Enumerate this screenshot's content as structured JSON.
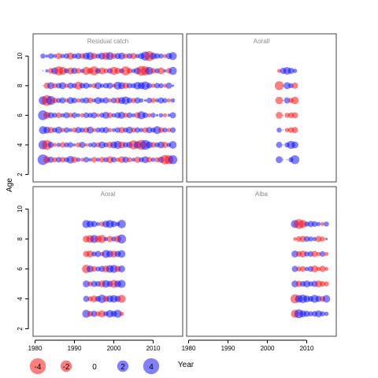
{
  "chart_data": {
    "type": "scatter",
    "subtype": "bubble-residuals",
    "xlabel": "Year",
    "ylabel": "Age",
    "xlim": [
      1979.5,
      2017.5
    ],
    "ylim": [
      1.5,
      11.5
    ],
    "x_ticks": [
      1980,
      1990,
      2000,
      2010
    ],
    "y_ticks": [
      2,
      4,
      6,
      8,
      10
    ],
    "colors": {
      "positive": "#0000ff",
      "negative": "#ff0000",
      "fill_opacity": 0.5
    },
    "legend": {
      "position": "bottom-left",
      "entries": [
        {
          "label": "-4",
          "value": -4
        },
        {
          "label": "-2",
          "value": -2
        },
        {
          "label": "0",
          "value": 0
        },
        {
          "label": "2",
          "value": 2
        },
        {
          "label": "4",
          "value": 4
        }
      ]
    },
    "panels": [
      {
        "title": "Residual catch",
        "x_range": [
          1982,
          2015
        ],
        "ages": [
          3,
          4,
          5,
          6,
          7,
          8,
          9,
          10
        ],
        "residuals": [
          [
            3.5,
            -1.5,
            1.2,
            -0.8,
            1.0,
            -1.0,
            0.8,
            1.8,
            -1.2,
            0.6,
            -0.5,
            1.0,
            0.4,
            -1.0,
            0.5,
            -1.0,
            0.8,
            -1.5,
            1.0,
            -0.6,
            -1.4,
            1.2,
            -0.8,
            0.5,
            -1.2,
            0.8,
            1.5,
            -1.0,
            0.6,
            -0.8,
            1.2,
            -2.8,
            -2.5,
            2.5
          ],
          [
            2.5,
            -3.0,
            1.2,
            -0.5,
            0.6,
            -1.0,
            0.8,
            1.0,
            0.3,
            -0.8,
            1.2,
            -0.4,
            0.6,
            1.0,
            -0.8,
            1.5,
            0.8,
            -1.2,
            1.5,
            2.0,
            -1.5,
            1.0,
            1.2,
            -2.5,
            1.8,
            -3.0,
            3.0,
            1.5,
            -1.0,
            0.8,
            1.5,
            -1.2,
            0.6,
            1.8
          ],
          [
            2.0,
            1.5,
            -1.2,
            0.8,
            1.5,
            -0.6,
            1.0,
            0.5,
            -0.8,
            1.2,
            0.8,
            -1.0,
            1.5,
            -0.5,
            0.8,
            1.0,
            1.2,
            -0.6,
            0.5,
            1.0,
            -1.2,
            0.8,
            1.5,
            -0.8,
            1.0,
            0.6,
            -1.0,
            1.2,
            0.8,
            2.0,
            -1.0,
            0.8,
            -0.6,
            1.0
          ],
          [
            3.0,
            -1.5,
            1.2,
            0.8,
            -1.0,
            0.6,
            1.2,
            -0.8,
            1.0,
            0.5,
            -0.6,
            1.0,
            0.8,
            1.2,
            -0.5,
            0.8,
            1.5,
            -1.0,
            0.6,
            1.2,
            1.5,
            -0.8,
            1.0,
            0.5,
            -1.2,
            2.0,
            1.0,
            -0.6,
            0.8,
            0.2,
            0.6,
            -0.5,
            0.3,
            1.2
          ],
          [
            2.2,
            -3.5,
            2.5,
            -1.0,
            0.8,
            1.2,
            -0.5,
            1.5,
            1.0,
            -0.6,
            0.8,
            1.2,
            -1.0,
            0.5,
            1.5,
            0.8,
            1.2,
            -0.5,
            1.0,
            -1.2,
            1.5,
            2.0,
            1.0,
            -0.8,
            1.2,
            0.6,
            0.2,
            1.0,
            -0.8,
            0.5,
            1.2,
            0.8,
            -0.5,
            0.6
          ],
          [
            0.0,
            -1.2,
            1.5,
            -0.8,
            1.0,
            1.5,
            -0.6,
            1.2,
            0.8,
            -2.0,
            1.0,
            1.2,
            0.5,
            -0.8,
            1.5,
            0.6,
            1.0,
            1.2,
            -0.5,
            2.0,
            1.5,
            -1.2,
            1.0,
            0.8,
            1.8,
            1.5,
            2.2,
            1.0,
            -0.6,
            1.0,
            0.8,
            -0.5,
            1.2,
            0.2
          ],
          [
            0.0,
            0.3,
            -1.0,
            1.5,
            -2.5,
            -2.0,
            0.8,
            -1.5,
            1.2,
            -1.0,
            0.6,
            -2.0,
            -1.2,
            -2.5,
            1.0,
            -1.5,
            -0.8,
            1.0,
            -2.0,
            -1.2,
            0.8,
            -2.5,
            -1.0,
            0.6,
            1.5,
            -3.0,
            -2.5,
            2.0,
            -1.0,
            0.8,
            -1.5,
            0.3,
            -1.0,
            2.0
          ],
          [
            0.8,
            0.3,
            1.0,
            0.5,
            -1.2,
            0.6,
            1.0,
            -1.5,
            0.8,
            1.2,
            -1.0,
            1.5,
            2.0,
            -1.2,
            0.8,
            1.5,
            -1.8,
            2.0,
            -1.0,
            1.2,
            1.5,
            -0.8,
            1.0,
            -1.2,
            0.6,
            1.2,
            2.5,
            -3.0,
            1.5,
            1.0,
            0.8,
            -0.5,
            1.2,
            2.0
          ]
        ]
      },
      {
        "title": "Aorall",
        "x_range": [
          2003,
          2007
        ],
        "ages": [
          3,
          4,
          5,
          6,
          7,
          8,
          9
        ],
        "residuals": [
          [
            1.5,
            0.0,
            0.0,
            0.8,
            2.5
          ],
          [
            1.2,
            0.0,
            0.8,
            2.0,
            1.5
          ],
          [
            0.8,
            0.0,
            -0.6,
            -1.0,
            -1.2
          ],
          [
            -1.5,
            0.0,
            -0.8,
            -1.0,
            -1.2
          ],
          [
            -1.8,
            0.0,
            1.2,
            -0.8,
            -1.8
          ],
          [
            -2.5,
            0.0,
            1.5,
            0.8,
            -1.2
          ],
          [
            -0.5,
            1.2,
            1.8,
            1.2,
            0.6
          ]
        ]
      },
      {
        "title": "Aoral",
        "x_range": [
          1993,
          2002
        ],
        "ages": [
          3,
          4,
          5,
          6,
          7,
          8,
          9
        ],
        "residuals": [
          [
            2.0,
            -1.0,
            1.2,
            -0.8,
            -1.5,
            0.8,
            1.8,
            1.2,
            2.0,
            -0.6
          ],
          [
            1.2,
            -0.8,
            -1.5,
            1.0,
            2.2,
            -1.2,
            1.5,
            1.8,
            1.2,
            -2.0
          ],
          [
            1.5,
            -0.8,
            1.2,
            1.0,
            -1.5,
            1.8,
            1.2,
            -2.0,
            1.5,
            2.0
          ],
          [
            -2.2,
            1.5,
            -1.0,
            0.8,
            1.2,
            -1.5,
            1.8,
            2.0,
            -1.2,
            1.5
          ],
          [
            -1.2,
            -1.5,
            0.8,
            1.2,
            -0.6,
            2.0,
            1.5,
            -1.5,
            1.2,
            1.8
          ],
          [
            -1.5,
            -1.8,
            2.0,
            -1.5,
            -2.0,
            0.6,
            -1.2,
            0.8,
            -1.5,
            2.5
          ],
          [
            2.0,
            1.5,
            1.2,
            0.5,
            -0.8,
            1.5,
            2.0,
            1.2,
            0.6,
            2.2
          ]
        ]
      },
      {
        "title": "Alba",
        "x_range": [
          2007,
          2015
        ],
        "ages": [
          3,
          4,
          5,
          6,
          7,
          8,
          9
        ],
        "residuals": [
          [
            -2.0,
            2.5,
            1.5,
            1.2,
            0.8,
            1.0,
            1.5,
            0.8,
            0.6
          ],
          [
            -2.5,
            1.8,
            2.2,
            1.5,
            1.0,
            2.0,
            1.2,
            -1.0,
            1.8
          ],
          [
            1.5,
            -1.2,
            1.0,
            1.5,
            0.8,
            1.2,
            -1.5,
            -1.0,
            -0.8
          ],
          [
            1.2,
            -0.8,
            -1.0,
            0.6,
            1.0,
            -1.5,
            -0.6,
            -1.2,
            -0.5
          ],
          [
            1.5,
            -1.0,
            -1.5,
            0.8,
            1.0,
            -1.2,
            -0.6,
            1.0,
            -0.5
          ],
          [
            -0.4,
            -1.0,
            -1.2,
            1.0,
            0.8,
            0.6,
            -1.2,
            -0.8,
            0.2
          ],
          [
            2.0,
            -3.0,
            -2.0,
            0.8,
            1.2,
            1.0,
            0.6,
            -0.5,
            0.8
          ]
        ]
      }
    ]
  }
}
